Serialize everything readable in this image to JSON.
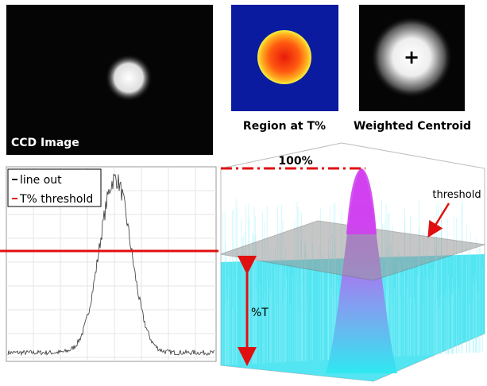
{
  "panels": {
    "ccd": {
      "label": "CCD Image"
    },
    "region": {
      "label": "Region at T%"
    },
    "centroid": {
      "label": "Weighted Centroid",
      "marker": "+"
    }
  },
  "lineout": {
    "legend": [
      "line out",
      "T% threshold"
    ]
  },
  "surface": {
    "peak_label": "100%",
    "threshold_label": "threshold",
    "level_label": "%T"
  }
}
